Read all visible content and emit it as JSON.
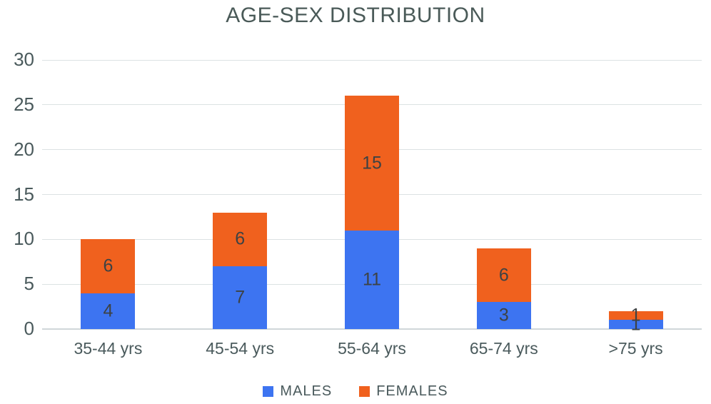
{
  "chart_data": {
    "type": "bar",
    "stacked": true,
    "title": "AGE-SEX DISTRIBUTION",
    "categories": [
      "35-44 yrs",
      "45-54 yrs",
      "55-64 yrs",
      "65-74 yrs",
      ">75 yrs"
    ],
    "series": [
      {
        "name": "MALES",
        "color": "#3D74F1",
        "values": [
          4,
          7,
          11,
          3,
          1
        ]
      },
      {
        "name": "FEMALES",
        "color": "#F0611E",
        "values": [
          6,
          6,
          15,
          6,
          1
        ]
      }
    ],
    "yticks": [
      0,
      5,
      10,
      15,
      20,
      25,
      30
    ],
    "ylim": [
      0,
      30
    ],
    "xlabel": "",
    "ylabel": "",
    "grid": true,
    "value_labels": true,
    "legend_position": "bottom"
  },
  "colors": {
    "title_text": "#4A5A58",
    "axis_text": "#4A5A5C",
    "value_label_text": "#3D4244",
    "gridline": "#DCE2E3",
    "axis_line": "#D0D7D9",
    "background": "#FFFFFF"
  }
}
